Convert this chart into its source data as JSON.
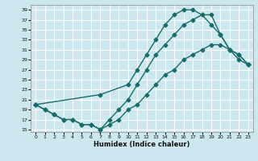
{
  "xlabel": "Humidex (Indice chaleur)",
  "bg_color": "#cce8ee",
  "grid_color": "#ffffff",
  "line_color": "#1a6b6b",
  "xlim": [
    -0.5,
    23.5
  ],
  "ylim": [
    14.5,
    40
  ],
  "xticks": [
    0,
    1,
    2,
    3,
    4,
    5,
    6,
    7,
    8,
    9,
    10,
    11,
    12,
    13,
    14,
    15,
    16,
    17,
    18,
    19,
    20,
    21,
    22,
    23
  ],
  "yticks": [
    15,
    17,
    19,
    21,
    23,
    25,
    27,
    29,
    31,
    33,
    35,
    37,
    39
  ],
  "line1_x": [
    0,
    1,
    2,
    3,
    4,
    5,
    6,
    7,
    8,
    9,
    10,
    11,
    12,
    13,
    14,
    15,
    16,
    17,
    18,
    19,
    20,
    21,
    22,
    23
  ],
  "line1_y": [
    20,
    19,
    18,
    17,
    17,
    16,
    16,
    15,
    16,
    17,
    19,
    20,
    22,
    24,
    26,
    27,
    29,
    30,
    31,
    32,
    32,
    31,
    29,
    28
  ],
  "line2_x": [
    0,
    1,
    2,
    3,
    4,
    5,
    6,
    7,
    8,
    9,
    10,
    11,
    12,
    13,
    14,
    15,
    16,
    17,
    18,
    19,
    20,
    21,
    22,
    23
  ],
  "line2_y": [
    20,
    19,
    18,
    17,
    17,
    16,
    16,
    15,
    17,
    19,
    21,
    24,
    27,
    30,
    32,
    34,
    36,
    37,
    38,
    38,
    34,
    31,
    30,
    28
  ],
  "line3_x": [
    0,
    7,
    10,
    11,
    12,
    13,
    14,
    15,
    16,
    17,
    18,
    19,
    20,
    21,
    22,
    23
  ],
  "line3_y": [
    20,
    22,
    24,
    27,
    30,
    33,
    36,
    38,
    39,
    39,
    38,
    36,
    34,
    31,
    30,
    28
  ]
}
